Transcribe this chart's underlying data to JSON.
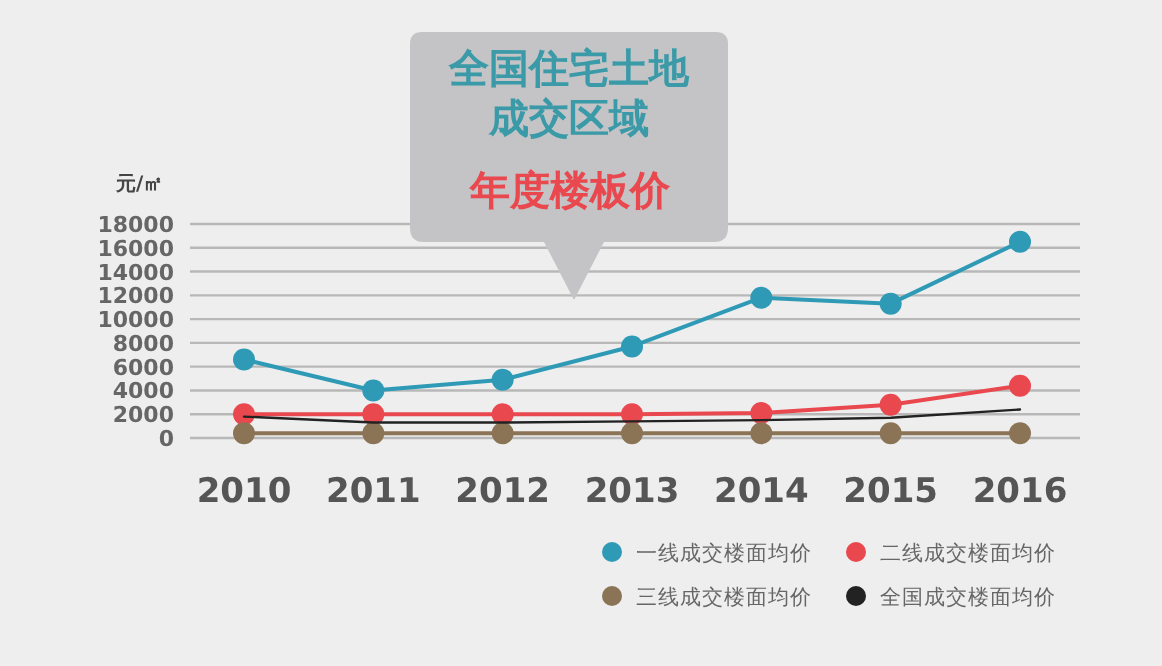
{
  "chart_data": {
    "type": "line",
    "title": "全国住宅土地成交区域",
    "subtitle": "年度楼板价",
    "ylabel": "元/㎡",
    "categories": [
      "2010",
      "2011",
      "2012",
      "2013",
      "2014",
      "2015",
      "2016"
    ],
    "ylim": [
      0,
      18000
    ],
    "yticks": [
      0,
      2000,
      4000,
      6000,
      8000,
      10000,
      12000,
      14000,
      16000,
      18000
    ],
    "grid": "y",
    "legend": "bottom right",
    "marker": "circle",
    "series": [
      {
        "name": "一线成交楼面均价",
        "color": "#2e9ab5",
        "values": [
          6600,
          4000,
          4900,
          7700,
          11800,
          11300,
          16500
        ]
      },
      {
        "name": "二线成交楼面均价",
        "color": "#e8484e",
        "values": [
          2000,
          2000,
          2000,
          2000,
          2100,
          2800,
          4400
        ]
      },
      {
        "name": "三线成交楼面均价",
        "color": "#8b7355",
        "values": [
          400,
          400,
          400,
          400,
          400,
          400,
          400
        ]
      },
      {
        "name": "全国成交楼面均价",
        "color": "#222222",
        "marker": "none",
        "values": [
          1800,
          1300,
          1300,
          1400,
          1500,
          1700,
          2400
        ]
      }
    ]
  }
}
